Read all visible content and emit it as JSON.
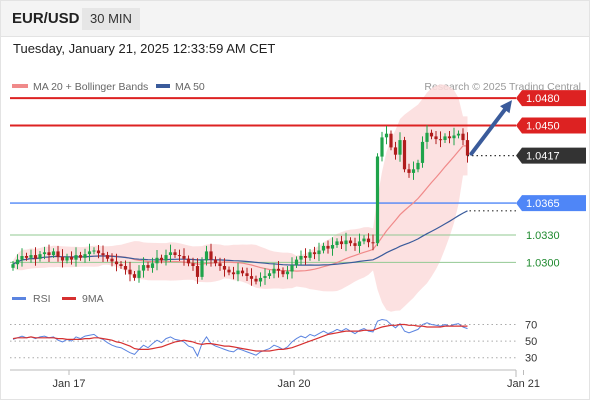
{
  "header": {
    "pair": "EUR/USD",
    "timeframe": "30 MIN",
    "datetime": "Tuesday, January 21, 2025 12:33:59 AM CET"
  },
  "legend": {
    "ma20_label": "MA 20 + Bollinger Bands",
    "ma50_label": "MA 50",
    "source": "Research © 2025 Trading Central"
  },
  "colors": {
    "resistance": "#dd2222",
    "pivot": "#4f86f7",
    "support": "#92c892",
    "bull_candle": "#1fa34a",
    "bear_candle": "#b01d1d",
    "ma20": "#f08a8a",
    "ma50": "#3a5b9b",
    "bollinger_fill": "#fcdcdc",
    "arrow": "#3a5b9b",
    "rsi": "#5b84e0",
    "rsi_ma": "#d63030"
  },
  "chart_data": [
    {
      "type": "candlestick",
      "title": "",
      "ylim": [
        1.0273,
        1.049
      ],
      "levels": [
        {
          "value": 1.048,
          "label": "1.0480",
          "kind": "resistance"
        },
        {
          "value": 1.045,
          "label": "1.0450",
          "kind": "resistance"
        },
        {
          "value": 1.0417,
          "label": "1.0417",
          "kind": "current"
        },
        {
          "value": 1.0365,
          "label": "1.0365",
          "kind": "pivot"
        },
        {
          "value": 1.033,
          "label": "1.0330",
          "kind": "support"
        },
        {
          "value": 1.03,
          "label": "1.0300",
          "kind": "support"
        }
      ],
      "closes": [
        1.0298,
        1.0303,
        1.0307,
        1.0305,
        1.0308,
        1.0304,
        1.0309,
        1.0311,
        1.0308,
        1.0312,
        1.0306,
        1.0302,
        1.0306,
        1.0303,
        1.0308,
        1.0305,
        1.0309,
        1.0312,
        1.0313,
        1.031,
        1.0308,
        1.0304,
        1.0301,
        1.0298,
        1.0296,
        1.0292,
        1.0287,
        1.0283,
        1.0291,
        1.0297,
        1.0294,
        1.0299,
        1.0305,
        1.0302,
        1.0308,
        1.0311,
        1.0308,
        1.0307,
        1.0304,
        1.0299,
        1.0296,
        1.0284,
        1.0302,
        1.0312,
        1.0303,
        1.0299,
        1.0296,
        1.0292,
        1.0289,
        1.0287,
        1.0291,
        1.0288,
        1.0285,
        1.0282,
        1.0279,
        1.0283,
        1.0285,
        1.0288,
        1.0293,
        1.0291,
        1.0287,
        1.029,
        1.0297,
        1.0303,
        1.0307,
        1.0305,
        1.0311,
        1.0309,
        1.0313,
        1.0318,
        1.0315,
        1.0319,
        1.0323,
        1.032,
        1.0324,
        1.0321,
        1.0318,
        1.0323,
        1.0326,
        1.0322,
        1.0321,
        1.0416,
        1.0437,
        1.0441,
        1.0426,
        1.0418,
        1.0434,
        1.0402,
        1.0398,
        1.0402,
        1.0409,
        1.0432,
        1.0442,
        1.0438,
        1.0435,
        1.0434,
        1.0438,
        1.0436,
        1.0439,
        1.0441,
        1.0434,
        1.0417
      ],
      "x_ticks": [
        {
          "label": "Jan 17",
          "index": 12
        },
        {
          "label": "Jan 20",
          "index": 62
        },
        {
          "label": "Jan 21",
          "index": 113
        }
      ],
      "projection_arrow": {
        "from": 1.0417,
        "to": 1.048
      }
    },
    {
      "type": "line",
      "series": [
        {
          "name": "RSI",
          "values": [
            52,
            54,
            56,
            54,
            55,
            53,
            55,
            56,
            54,
            55,
            51,
            49,
            52,
            50,
            55,
            53,
            56,
            57,
            58,
            54,
            52,
            48,
            45,
            43,
            42,
            39,
            36,
            34,
            40,
            45,
            42,
            47,
            51,
            48,
            53,
            55,
            52,
            51,
            49,
            44,
            42,
            32,
            47,
            55,
            47,
            44,
            42,
            40,
            38,
            37,
            41,
            39,
            37,
            35,
            33,
            37,
            39,
            41,
            45,
            43,
            40,
            43,
            49,
            53,
            56,
            54,
            58,
            56,
            59,
            62,
            59,
            61,
            64,
            62,
            65,
            62,
            59,
            63,
            65,
            62,
            61,
            74,
            76,
            75,
            70,
            66,
            71,
            62,
            60,
            62,
            64,
            70,
            72,
            70,
            69,
            68,
            70,
            68,
            70,
            71,
            67,
            65
          ]
        },
        {
          "name": "9MA",
          "values": [
            53,
            54,
            54,
            54,
            55,
            54,
            54,
            54,
            54,
            54,
            53,
            53,
            52,
            52,
            52,
            52,
            53,
            53,
            54,
            54,
            53,
            52,
            51,
            49,
            48,
            46,
            44,
            41,
            40,
            40,
            40,
            41,
            42,
            43,
            45,
            47,
            49,
            50,
            51,
            50,
            49,
            47,
            46,
            47,
            47,
            46,
            45,
            44,
            44,
            43,
            42,
            41,
            40,
            39,
            38,
            38,
            38,
            38,
            39,
            40,
            40,
            41,
            42,
            44,
            46,
            48,
            50,
            52,
            54,
            56,
            58,
            59,
            60,
            61,
            62,
            62,
            62,
            62,
            63,
            63,
            63,
            65,
            67,
            68,
            69,
            69,
            70,
            70,
            69,
            69,
            68,
            68,
            67,
            67,
            67,
            67,
            68,
            68,
            68,
            68,
            68,
            68
          ]
        }
      ],
      "levels": [
        70,
        50,
        30
      ],
      "ylim": [
        20,
        85
      ]
    }
  ]
}
